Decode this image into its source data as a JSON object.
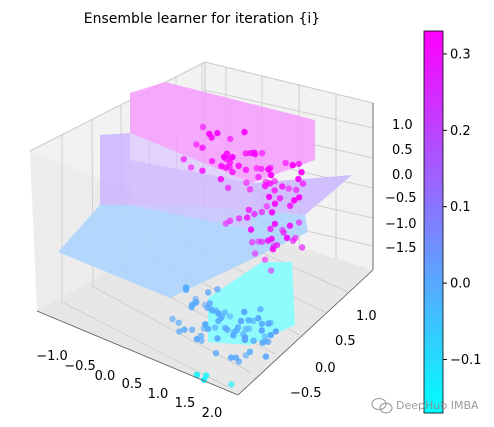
{
  "chart_data": {
    "type": "scatter",
    "projection": "3d",
    "title": "Ensemble learner for iteration {i}",
    "xlabel": "",
    "ylabel": "",
    "zlabel": "",
    "x_ticks": [
      "−1.0",
      "−0.5",
      "0.0",
      "0.5",
      "1.0",
      "1.5",
      "2.0"
    ],
    "y_ticks": [
      "−0.5",
      "0.0",
      "0.5",
      "1.0"
    ],
    "z_ticks": [
      "1.0",
      "0.5",
      "0.0",
      "−0.5",
      "−1.0",
      "−1.5"
    ],
    "xlim": [
      -1.25,
      2.25
    ],
    "ylim": [
      -0.75,
      1.25
    ],
    "zlim": [
      -2.0,
      1.2
    ],
    "colormap": "cool",
    "colorbar": {
      "ticks": [
        "0.3",
        "0.2",
        "0.1",
        "0.0",
        "−0.1"
      ],
      "tick_values": [
        0.3,
        0.2,
        0.1,
        0.0,
        -0.1
      ],
      "range": [
        -0.17,
        0.33
      ]
    },
    "surface": {
      "description": "stepwise ensemble prediction surface",
      "levels": [
        {
          "region": "x in [0.2,2.2], y in [-0.5,0.3]",
          "z": -1.75,
          "value": -0.16
        },
        {
          "region": "x in [-1.1,0.2], y in [-0.5,0.5]",
          "z": -0.6,
          "value": 0.02
        },
        {
          "region": "x in [0.2,2.2], y in [0.3,1.1]",
          "z": 0.0,
          "value": 0.12
        },
        {
          "region": "x in [-0.4,1.2], y in [0.5,1.1]",
          "z": 1.0,
          "value": 0.31
        }
      ]
    },
    "series": [
      {
        "cluster": "upper",
        "approx_x": [
          -0.5,
          1.2
        ],
        "approx_y": [
          0.6,
          1.1
        ],
        "approx_z": [
          0.5,
          1.1
        ],
        "value": 0.32
      },
      {
        "cluster": "middle",
        "approx_x": [
          0.4,
          1.3
        ],
        "approx_y": [
          0.4,
          0.9
        ],
        "approx_z": [
          -0.2,
          0.4
        ],
        "value": 0.3
      },
      {
        "cluster": "lower",
        "approx_x": [
          0.0,
          1.5
        ],
        "approx_y": [
          -0.2,
          0.4
        ],
        "approx_z": [
          -1.5,
          -0.9
        ],
        "value": 0.0
      },
      {
        "cluster": "bottom",
        "approx_x": [
          0.8,
          1.5
        ],
        "approx_y": [
          -0.5,
          -0.2
        ],
        "approx_z": [
          -1.9,
          -1.6
        ],
        "value": -0.15
      }
    ],
    "grid": true,
    "legend": "none"
  },
  "watermark": {
    "text": "DeepHub IMBA"
  }
}
